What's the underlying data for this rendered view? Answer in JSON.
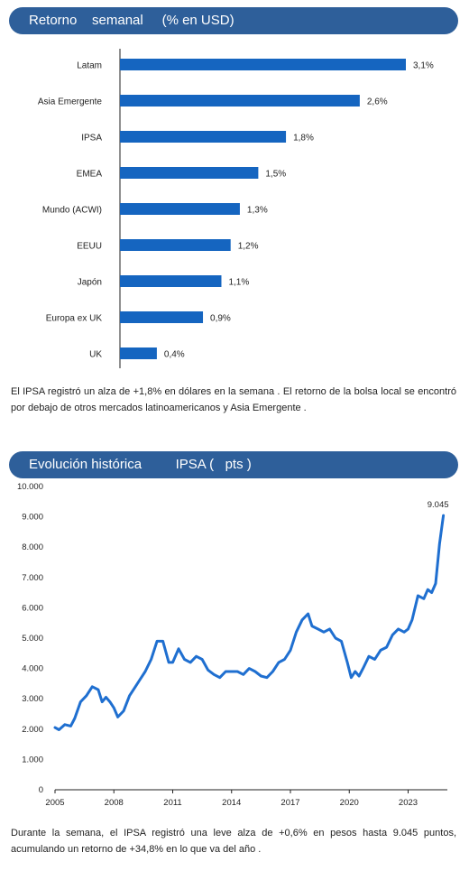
{
  "section1": {
    "title": "Retorno    semanal     (% en USD)"
  },
  "section2": {
    "title": "Evolución histórica         IPSA (   pts )"
  },
  "paragraph1": "El IPSA registró  un alza  de  +1,8% en  dólares    en  la  semana   . El retorno   de  la  bolsa local  se  encontró   por  debajo  de  otros  mercados    latinoamericanos      y  Asia Emergente    .",
  "paragraph2": "Durante   la  semana,   el IPSA registró   una  leve  alza  de  +0,6% en pesos  hasta   9.045 puntos,  acumulando     un  retorno   de  +34,8% en lo  que  va  del  año .",
  "colors": {
    "header_bg": "#2e5f9a",
    "bar": "#1565c0",
    "line": "#1f6fd0",
    "axis": "#222222"
  },
  "chart_data": [
    {
      "type": "bar",
      "orientation": "horizontal",
      "categories": [
        "Latam",
        "Asia Emergente",
        "IPSA",
        "EMEA",
        "Mundo (ACWI)",
        "EEUU",
        "Japón",
        "Europa ex UK",
        "UK"
      ],
      "values": [
        3.1,
        2.6,
        1.8,
        1.5,
        1.3,
        1.2,
        1.1,
        0.9,
        0.4
      ],
      "value_labels": [
        "3,1%",
        "2,6%",
        "1,8%",
        "1,5%",
        "1,3%",
        "1,2%",
        "1,1%",
        "0,9%",
        "0,4%"
      ],
      "title": "Retorno    semanal     (% en USD)",
      "xlim": [
        0,
        3.3
      ],
      "grid": false
    },
    {
      "type": "line",
      "title": "Evolución histórica         IPSA (   pts )",
      "x_ticks": [
        "2005",
        "2008",
        "2011",
        "2014",
        "2017",
        "2020",
        "2023"
      ],
      "y_ticks": [
        "0",
        "1.000",
        "2.000",
        "3.000",
        "4.000",
        "5.000",
        "6.000",
        "7.000",
        "8.000",
        "9.000",
        "10.000"
      ],
      "xlim": [
        2005,
        2025
      ],
      "ylim": [
        0,
        10000
      ],
      "grid": false,
      "annotation": "9.045",
      "series": [
        {
          "x": [
            2005.0,
            2005.2,
            2005.5,
            2005.8,
            2006.0,
            2006.3,
            2006.6,
            2006.9,
            2007.2,
            2007.4,
            2007.6,
            2007.8,
            2008.0,
            2008.2,
            2008.5,
            2008.8,
            2009.0,
            2009.3,
            2009.6,
            2009.9,
            2010.2,
            2010.5,
            2010.8,
            2011.0,
            2011.3,
            2011.6,
            2011.9,
            2012.2,
            2012.5,
            2012.8,
            2013.1,
            2013.4,
            2013.7,
            2014.0,
            2014.3,
            2014.6,
            2014.9,
            2015.2,
            2015.5,
            2015.8,
            2016.1,
            2016.4,
            2016.7,
            2017.0,
            2017.3,
            2017.6,
            2017.9,
            2018.1,
            2018.4,
            2018.7,
            2019.0,
            2019.3,
            2019.6,
            2019.9,
            2020.1,
            2020.3,
            2020.5,
            2020.7,
            2021.0,
            2021.3,
            2021.6,
            2021.9,
            2022.2,
            2022.5,
            2022.8,
            2023.0,
            2023.2,
            2023.5,
            2023.8,
            2024.0,
            2024.2,
            2024.4,
            2024.6,
            2024.8
          ],
          "values": [
            2050,
            1980,
            2150,
            2100,
            2350,
            2900,
            3100,
            3400,
            3300,
            2900,
            3050,
            2900,
            2700,
            2400,
            2600,
            3100,
            3300,
            3600,
            3900,
            4300,
            4900,
            4900,
            4200,
            4200,
            4650,
            4300,
            4200,
            4400,
            4300,
            3950,
            3800,
            3700,
            3900,
            3900,
            3900,
            3800,
            4000,
            3900,
            3750,
            3700,
            3900,
            4200,
            4300,
            4600,
            5200,
            5600,
            5800,
            5400,
            5300,
            5200,
            5300,
            5000,
            4900,
            4200,
            3700,
            3900,
            3750,
            4000,
            4400,
            4300,
            4600,
            4700,
            5100,
            5300,
            5200,
            5300,
            5600,
            6400,
            6300,
            6600,
            6500,
            6800,
            8100,
            9045
          ]
        }
      ]
    }
  ]
}
